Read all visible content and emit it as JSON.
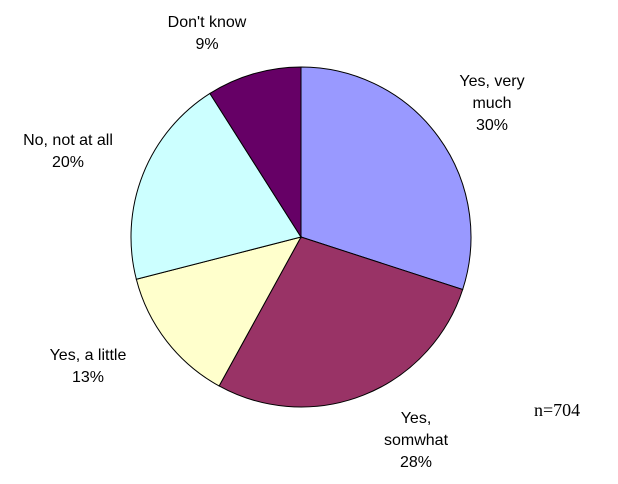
{
  "chart_data": {
    "type": "pie",
    "start_angle_deg": 0,
    "direction": "clockwise",
    "slices": [
      {
        "label_lines": [
          "Yes, very",
          "much"
        ],
        "value": 30,
        "value_text": "30%",
        "color": "#9999ff"
      },
      {
        "label_lines": [
          "Yes,",
          "somwhat"
        ],
        "value": 28,
        "value_text": "28%",
        "color": "#993366"
      },
      {
        "label_lines": [
          "Yes, a little"
        ],
        "value": 13,
        "value_text": "13%",
        "color": "#ffffcc"
      },
      {
        "label_lines": [
          "No, not at all"
        ],
        "value": 20,
        "value_text": "20%",
        "color": "#ccffff"
      },
      {
        "label_lines": [
          "Don't know"
        ],
        "value": 9,
        "value_text": "9%",
        "color": "#660066"
      }
    ],
    "note": "n=704",
    "outline_color": "#000000"
  }
}
